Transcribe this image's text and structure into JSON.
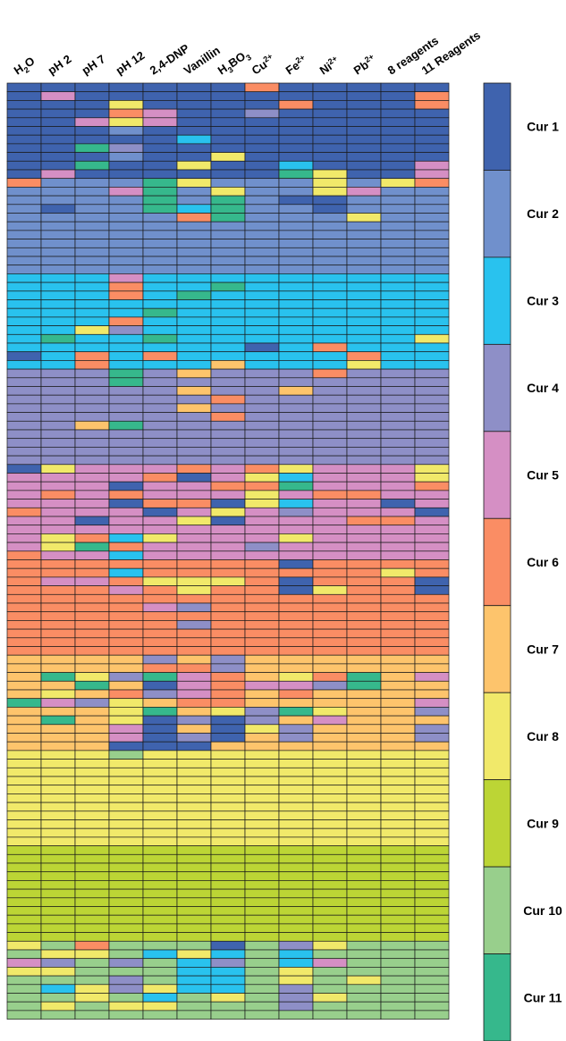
{
  "chart_data": {
    "type": "heatmap",
    "columns": [
      {
        "text": "H",
        "sub": "2",
        "rest": "O",
        "sup": ""
      },
      {
        "text": "pH 2",
        "sub": "",
        "rest": "",
        "sup": ""
      },
      {
        "text": "pH 7",
        "sub": "",
        "rest": "",
        "sup": ""
      },
      {
        "text": "pH 12",
        "sub": "",
        "rest": "",
        "sup": ""
      },
      {
        "text": "2,4-DNP",
        "sub": "",
        "rest": "",
        "sup": ""
      },
      {
        "text": "Vanillin",
        "sub": "",
        "rest": "",
        "sup": ""
      },
      {
        "text": "H",
        "sub": "3",
        "rest": "BO",
        "sub2": "3",
        "sup": ""
      },
      {
        "text": "Cu",
        "sub": "",
        "rest": "",
        "sup": "2+"
      },
      {
        "text": "Fe",
        "sub": "",
        "rest": "",
        "sup": "2+"
      },
      {
        "text": "Ni",
        "sub": "",
        "rest": "",
        "sup": "2+"
      },
      {
        "text": "Pb",
        "sub": "",
        "rest": "",
        "sup": "2+"
      },
      {
        "text": "8 reagents",
        "sub": "",
        "rest": "",
        "sup": ""
      },
      {
        "text": "11 Reagents",
        "sub": "",
        "rest": "",
        "sup": ""
      }
    ],
    "categories": [
      {
        "label": "Cur 1",
        "color": "#3f63ae"
      },
      {
        "label": "Cur 2",
        "color": "#7090cc"
      },
      {
        "label": "Cur 3",
        "color": "#29c2ee"
      },
      {
        "label": "Cur 4",
        "color": "#8e8fc7"
      },
      {
        "label": "Cur 5",
        "color": "#d58fc4"
      },
      {
        "label": "Cur 6",
        "color": "#fa8d64"
      },
      {
        "label": "Cur 7",
        "color": "#fdc46c"
      },
      {
        "label": "Cur 8",
        "color": "#f1e96a"
      },
      {
        "label": "Cur 9",
        "color": "#bcd535"
      },
      {
        "label": "Cur 10",
        "color": "#98cf8c"
      },
      {
        "label": "Cur 11",
        "color": "#36b88c"
      }
    ],
    "rows_per_cluster": 11,
    "exceptions": [
      [
        0,
        7,
        6
      ],
      [
        1,
        1,
        5
      ],
      [
        1,
        12,
        6
      ],
      [
        2,
        3,
        8
      ],
      [
        2,
        8,
        6
      ],
      [
        2,
        12,
        6
      ],
      [
        3,
        3,
        6
      ],
      [
        3,
        4,
        5
      ],
      [
        3,
        7,
        4
      ],
      [
        4,
        2,
        5
      ],
      [
        4,
        3,
        8
      ],
      [
        4,
        4,
        5
      ],
      [
        5,
        3,
        2
      ],
      [
        6,
        5,
        3
      ],
      [
        7,
        2,
        11
      ],
      [
        7,
        3,
        4
      ],
      [
        8,
        3,
        2
      ],
      [
        8,
        6,
        8
      ],
      [
        9,
        2,
        11
      ],
      [
        9,
        5,
        8
      ],
      [
        9,
        8,
        3
      ],
      [
        9,
        12,
        5
      ],
      [
        10,
        1,
        5
      ],
      [
        10,
        8,
        11
      ],
      [
        10,
        9,
        8
      ],
      [
        10,
        12,
        5
      ],
      [
        11,
        0,
        6
      ],
      [
        11,
        4,
        11
      ],
      [
        11,
        5,
        8
      ],
      [
        11,
        9,
        8
      ],
      [
        11,
        11,
        8
      ],
      [
        11,
        12,
        6
      ],
      [
        12,
        3,
        5
      ],
      [
        12,
        4,
        11
      ],
      [
        12,
        6,
        8
      ],
      [
        12,
        9,
        8
      ],
      [
        12,
        10,
        5
      ],
      [
        13,
        4,
        11
      ],
      [
        13,
        6,
        11
      ],
      [
        13,
        8,
        1
      ],
      [
        13,
        9,
        1
      ],
      [
        14,
        1,
        1
      ],
      [
        14,
        4,
        11
      ],
      [
        14,
        5,
        3
      ],
      [
        14,
        6,
        11
      ],
      [
        14,
        9,
        1
      ],
      [
        15,
        5,
        6
      ],
      [
        15,
        6,
        11
      ],
      [
        15,
        10,
        8
      ],
      [
        22,
        3,
        5
      ],
      [
        23,
        3,
        6
      ],
      [
        23,
        6,
        11
      ],
      [
        24,
        3,
        6
      ],
      [
        24,
        5,
        11
      ],
      [
        26,
        4,
        11
      ],
      [
        27,
        3,
        6
      ],
      [
        28,
        2,
        8
      ],
      [
        28,
        3,
        4
      ],
      [
        29,
        1,
        11
      ],
      [
        29,
        4,
        11
      ],
      [
        29,
        12,
        8
      ],
      [
        30,
        7,
        1
      ],
      [
        30,
        9,
        6
      ],
      [
        31,
        0,
        1
      ],
      [
        31,
        2,
        6
      ],
      [
        31,
        3,
        3
      ],
      [
        31,
        4,
        6
      ],
      [
        31,
        10,
        6
      ],
      [
        32,
        2,
        6
      ],
      [
        32,
        6,
        7
      ],
      [
        32,
        10,
        8
      ],
      [
        33,
        3,
        11
      ],
      [
        33,
        5,
        7
      ],
      [
        33,
        9,
        6
      ],
      [
        34,
        3,
        11
      ],
      [
        35,
        5,
        7
      ],
      [
        35,
        8,
        7
      ],
      [
        36,
        6,
        6
      ],
      [
        37,
        5,
        7
      ],
      [
        38,
        6,
        6
      ],
      [
        39,
        2,
        7
      ],
      [
        39,
        3,
        11
      ],
      [
        44,
        0,
        1
      ],
      [
        44,
        1,
        8
      ],
      [
        44,
        5,
        6
      ],
      [
        44,
        7,
        6
      ],
      [
        44,
        8,
        8
      ],
      [
        44,
        12,
        8
      ],
      [
        45,
        1,
        5
      ],
      [
        45,
        4,
        6
      ],
      [
        45,
        5,
        1
      ],
      [
        45,
        7,
        8
      ],
      [
        45,
        8,
        3
      ],
      [
        45,
        12,
        8
      ],
      [
        46,
        3,
        1
      ],
      [
        46,
        6,
        6
      ],
      [
        46,
        7,
        6
      ],
      [
        46,
        8,
        11
      ],
      [
        46,
        12,
        6
      ],
      [
        47,
        1,
        6
      ],
      [
        47,
        3,
        6
      ],
      [
        47,
        7,
        8
      ],
      [
        47,
        9,
        6
      ],
      [
        47,
        10,
        6
      ],
      [
        48,
        3,
        1
      ],
      [
        48,
        4,
        6
      ],
      [
        48,
        5,
        6
      ],
      [
        48,
        6,
        1
      ],
      [
        48,
        7,
        8
      ],
      [
        48,
        8,
        3
      ],
      [
        48,
        11,
        1
      ],
      [
        49,
        0,
        6
      ],
      [
        49,
        4,
        1
      ],
      [
        49,
        6,
        8
      ],
      [
        49,
        8,
        4
      ],
      [
        49,
        11,
        5
      ],
      [
        49,
        12,
        1
      ],
      [
        50,
        2,
        1
      ],
      [
        50,
        5,
        8
      ],
      [
        50,
        6,
        1
      ],
      [
        50,
        10,
        6
      ],
      [
        50,
        11,
        6
      ],
      [
        52,
        1,
        8
      ],
      [
        52,
        2,
        6
      ],
      [
        52,
        3,
        3
      ],
      [
        52,
        4,
        8
      ],
      [
        52,
        8,
        8
      ],
      [
        53,
        1,
        8
      ],
      [
        53,
        2,
        11
      ],
      [
        53,
        3,
        6
      ],
      [
        53,
        5,
        5
      ],
      [
        53,
        7,
        4
      ],
      [
        54,
        0,
        6
      ],
      [
        54,
        3,
        3
      ],
      [
        54,
        5,
        5
      ],
      [
        55,
        3,
        6
      ],
      [
        55,
        8,
        1
      ],
      [
        56,
        3,
        3
      ],
      [
        56,
        8,
        6
      ],
      [
        56,
        11,
        8
      ],
      [
        57,
        1,
        5
      ],
      [
        57,
        2,
        5
      ],
      [
        57,
        4,
        8
      ],
      [
        57,
        5,
        8
      ],
      [
        57,
        6,
        8
      ],
      [
        57,
        8,
        1
      ],
      [
        57,
        12,
        1
      ],
      [
        58,
        3,
        5
      ],
      [
        58,
        5,
        8
      ],
      [
        58,
        8,
        1
      ],
      [
        58,
        9,
        8
      ],
      [
        58,
        12,
        1
      ],
      [
        59,
        4,
        6
      ],
      [
        60,
        4,
        5
      ],
      [
        60,
        5,
        4
      ],
      [
        62,
        5,
        4
      ],
      [
        65,
        4,
        6
      ],
      [
        66,
        4,
        4
      ],
      [
        66,
        6,
        4
      ],
      [
        67,
        4,
        6
      ],
      [
        67,
        5,
        6
      ],
      [
        67,
        6,
        4
      ],
      [
        68,
        1,
        11
      ],
      [
        68,
        2,
        8
      ],
      [
        68,
        3,
        4
      ],
      [
        68,
        4,
        11
      ],
      [
        68,
        5,
        5
      ],
      [
        68,
        6,
        6
      ],
      [
        68,
        8,
        8
      ],
      [
        68,
        9,
        6
      ],
      [
        68,
        10,
        11
      ],
      [
        68,
        12,
        5
      ],
      [
        69,
        2,
        11
      ],
      [
        69,
        4,
        1
      ],
      [
        69,
        5,
        5
      ],
      [
        69,
        6,
        6
      ],
      [
        69,
        7,
        5
      ],
      [
        69,
        8,
        5
      ],
      [
        69,
        9,
        4
      ],
      [
        69,
        10,
        11
      ],
      [
        70,
        1,
        8
      ],
      [
        70,
        3,
        6
      ],
      [
        70,
        4,
        4
      ],
      [
        70,
        5,
        5
      ],
      [
        70,
        6,
        6
      ],
      [
        70,
        8,
        6
      ],
      [
        71,
        0,
        11
      ],
      [
        71,
        1,
        5
      ],
      [
        71,
        2,
        4
      ],
      [
        71,
        3,
        8
      ],
      [
        71,
        5,
        6
      ],
      [
        71,
        6,
        6
      ],
      [
        71,
        12,
        5
      ],
      [
        72,
        3,
        8
      ],
      [
        72,
        4,
        11
      ],
      [
        72,
        6,
        8
      ],
      [
        72,
        7,
        4
      ],
      [
        72,
        8,
        11
      ],
      [
        72,
        9,
        8
      ],
      [
        72,
        12,
        4
      ],
      [
        73,
        1,
        11
      ],
      [
        73,
        3,
        8
      ],
      [
        73,
        4,
        1
      ],
      [
        73,
        5,
        4
      ],
      [
        73,
        6,
        1
      ],
      [
        73,
        7,
        4
      ],
      [
        73,
        9,
        5
      ],
      [
        74,
        3,
        5
      ],
      [
        74,
        4,
        1
      ],
      [
        74,
        6,
        1
      ],
      [
        74,
        7,
        8
      ],
      [
        74,
        8,
        4
      ],
      [
        74,
        12,
        4
      ],
      [
        75,
        3,
        5
      ],
      [
        75,
        4,
        1
      ],
      [
        75,
        5,
        4
      ],
      [
        75,
        6,
        1
      ],
      [
        75,
        8,
        4
      ],
      [
        75,
        12,
        4
      ],
      [
        76,
        3,
        1
      ],
      [
        76,
        4,
        1
      ],
      [
        76,
        5,
        1
      ],
      [
        77,
        3,
        10
      ],
      [
        93,
        3,
        9
      ],
      [
        95,
        3,
        9
      ],
      [
        93,
        6,
        9
      ],
      [
        99,
        0,
        8
      ],
      [
        99,
        2,
        6
      ],
      [
        99,
        6,
        1
      ],
      [
        99,
        8,
        4
      ],
      [
        99,
        9,
        8
      ],
      [
        100,
        1,
        8
      ],
      [
        100,
        2,
        8
      ],
      [
        100,
        4,
        3
      ],
      [
        100,
        5,
        8
      ],
      [
        100,
        6,
        3
      ],
      [
        100,
        8,
        3
      ],
      [
        101,
        0,
        5
      ],
      [
        101,
        1,
        4
      ],
      [
        101,
        3,
        4
      ],
      [
        101,
        5,
        3
      ],
      [
        101,
        6,
        4
      ],
      [
        101,
        8,
        3
      ],
      [
        101,
        9,
        5
      ],
      [
        102,
        0,
        8
      ],
      [
        102,
        1,
        8
      ],
      [
        102,
        5,
        3
      ],
      [
        102,
        6,
        3
      ],
      [
        102,
        8,
        8
      ],
      [
        103,
        3,
        4
      ],
      [
        103,
        5,
        3
      ],
      [
        103,
        6,
        3
      ],
      [
        103,
        8,
        8
      ],
      [
        103,
        10,
        8
      ],
      [
        104,
        1,
        3
      ],
      [
        104,
        2,
        8
      ],
      [
        104,
        3,
        4
      ],
      [
        104,
        4,
        8
      ],
      [
        104,
        5,
        3
      ],
      [
        104,
        6,
        3
      ],
      [
        104,
        8,
        4
      ],
      [
        105,
        2,
        8
      ],
      [
        105,
        4,
        3
      ],
      [
        105,
        6,
        8
      ],
      [
        105,
        8,
        4
      ],
      [
        105,
        9,
        8
      ],
      [
        106,
        1,
        8
      ],
      [
        106,
        3,
        8
      ],
      [
        106,
        4,
        8
      ],
      [
        106,
        8,
        4
      ]
    ]
  },
  "visible_rows": 108
}
